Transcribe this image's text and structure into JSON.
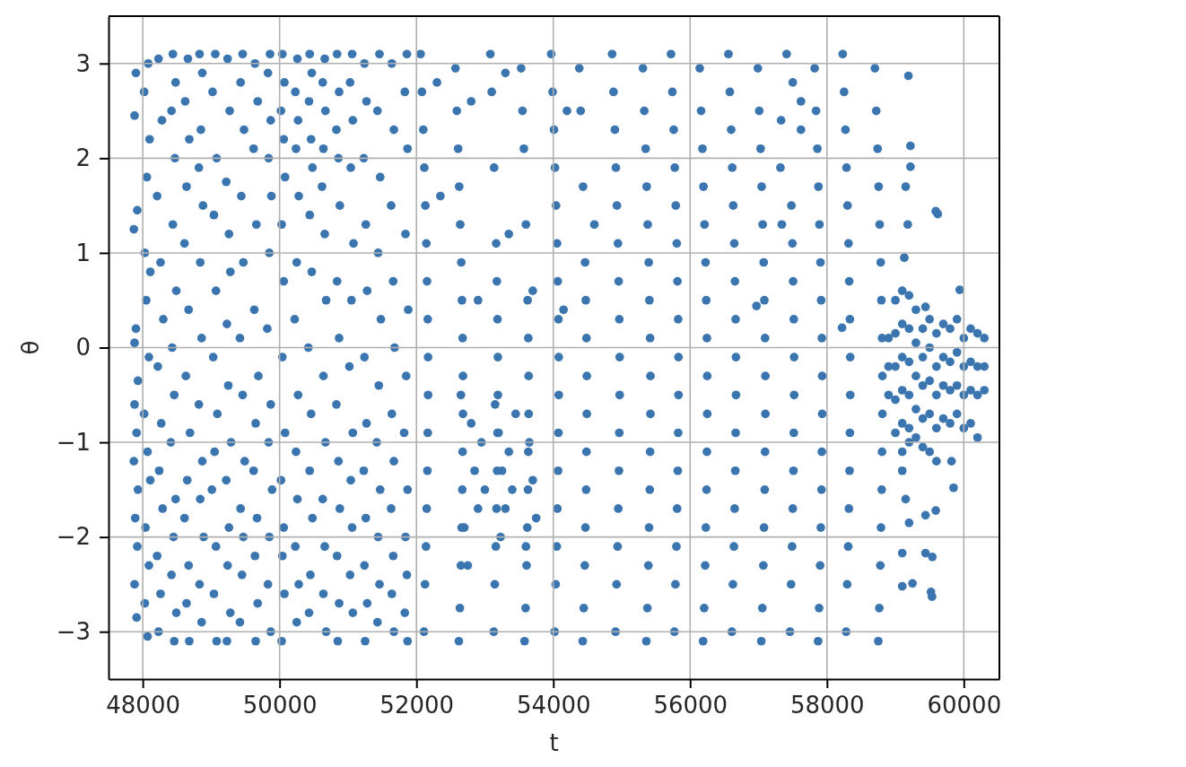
{
  "chart_data": {
    "type": "scatter",
    "xlabel": "t",
    "ylabel": "θ",
    "color": "#3b75af",
    "marker": "circle",
    "grid": true,
    "xlim": [
      47500,
      60520
    ],
    "ylim": [
      -3.5,
      3.5
    ],
    "xticks": [
      48000,
      50000,
      52000,
      54000,
      56000,
      58000,
      60000
    ],
    "yticks": [
      {
        "value": -3,
        "label": "−3"
      },
      {
        "value": -2,
        "label": "−2"
      },
      {
        "value": -1,
        "label": "−1"
      },
      0,
      1,
      2,
      3
    ],
    "x": [
      47900,
      47880,
      47920,
      47870,
      47900,
      47880,
      47930,
      47880,
      47910,
      47870,
      47930,
      47890,
      47920,
      47880,
      47910,
      48080,
      48020,
      48100,
      48060,
      48030,
      48110,
      48050,
      48090,
      48020,
      48070,
      48110,
      48040,
      48090,
      48030,
      48070,
      48230,
      48280,
      48210,
      48260,
      48300,
      48220,
      48270,
      48240,
      48290,
      48210,
      48260,
      48230,
      48440,
      48480,
      48420,
      48470,
      48440,
      48490,
      48430,
      48460,
      48410,
      48480,
      48450,
      48420,
      48490,
      48460,
      48660,
      48620,
      48680,
      48640,
      48610,
      48670,
      48630,
      48690,
      48650,
      48610,
      48670,
      48640,
      48680,
      48830,
      48870,
      48850,
      48820,
      48880,
      48840,
      48860,
      48820,
      48870,
      48840,
      48890,
      48830,
      48860,
      49060,
      49020,
      49080,
      49040,
      49070,
      49030,
      49090,
      49050,
      49010,
      49070,
      49040,
      49080,
      49240,
      49270,
      49220,
      49260,
      49280,
      49230,
      49250,
      49290,
      49220,
      49260,
      49240,
      49280,
      49230,
      49460,
      49430,
      49480,
      49440,
      49470,
      49420,
      49460,
      49490,
      49430,
      49470,
      49450,
      49420,
      49640,
      49680,
      49620,
      49660,
      49630,
      49690,
      49650,
      49620,
      49670,
      49640,
      49680,
      49650,
      49860,
      49830,
      49870,
      49840,
      49880,
      49850,
      49820,
      49870,
      49840,
      49890,
      49850,
      49830,
      49870,
      50040,
      50070,
      50020,
      50060,
      50080,
      50030,
      50060,
      50040,
      50080,
      50020,
      50060,
      50040,
      50070,
      50030,
      50260,
      50230,
      50270,
      50240,
      50280,
      50250,
      50220,
      50270,
      50240,
      50260,
      50230,
      50280,
      50250,
      50440,
      50470,
      50430,
      50460,
      50480,
      50440,
      50470,
      50420,
      50460,
      50440,
      50480,
      50450,
      50430,
      50660,
      50630,
      50670,
      50640,
      50620,
      50660,
      50680,
      50640,
      50670,
      50630,
      50660,
      50640,
      50680,
      50840,
      50870,
      50830,
      50860,
      50880,
      50840,
      50870,
      50830,
      50860,
      50880,
      50840,
      50870,
      50850,
      51060,
      51030,
      51070,
      51040,
      51080,
      51050,
      51020,
      51070,
      51040,
      51060,
      51030,
      51070,
      51240,
      51270,
      51230,
      51260,
      51280,
      51240,
      51270,
      51230,
      51260,
      51240,
      51280,
      51250,
      51460,
      51430,
      51470,
      51440,
      51480,
      51450,
      51420,
      51470,
      51440,
      51460,
      51430,
      51640,
      51670,
      51630,
      51660,
      51680,
      51640,
      51670,
      51630,
      51660,
      51640,
      51670,
      51860,
      51830,
      51870,
      51840,
      51880,
      51850,
      51820,
      51870,
      51840,
      51860,
      51830,
      51870,
      52060,
      52080,
      52100,
      52115,
      52130,
      52145,
      52155,
      52165,
      52170,
      52170,
      52165,
      52160,
      52150,
      52140,
      52125,
      52110,
      52570,
      52590,
      52610,
      52625,
      52640,
      52655,
      52665,
      52675,
      52680,
      52680,
      52675,
      52670,
      52660,
      52650,
      52635,
      52620,
      53080,
      53100,
      53135,
      53165,
      53175,
      53185,
      53190,
      53190,
      53185,
      53180,
      53170,
      53160,
      53145,
      53130,
      53530,
      53550,
      53570,
      53600,
      53625,
      53635,
      53640,
      53640,
      53635,
      53630,
      53620,
      53610,
      53595,
      53580,
      53970,
      53990,
      54010,
      54025,
      54040,
      54055,
      54065,
      54075,
      54080,
      54080,
      54075,
      54070,
      54060,
      54050,
      54035,
      54020,
      54380,
      54400,
      54435,
      54465,
      54475,
      54485,
      54490,
      54490,
      54485,
      54480,
      54470,
      54460,
      54445,
      54430,
      54860,
      54880,
      54900,
      54915,
      54930,
      54945,
      54955,
      54965,
      54970,
      54970,
      54965,
      54960,
      54950,
      54940,
      54925,
      54910,
      55310,
      55330,
      55350,
      55365,
      55380,
      55395,
      55405,
      55415,
      55420,
      55420,
      55415,
      55410,
      55400,
      55390,
      55375,
      55360,
      55720,
      55740,
      55760,
      55775,
      55790,
      55805,
      55815,
      55825,
      55830,
      55830,
      55825,
      55820,
      55810,
      55800,
      55785,
      55770,
      56140,
      56160,
      56180,
      56195,
      56210,
      56225,
      56235,
      56245,
      56250,
      56250,
      56245,
      56240,
      56230,
      56220,
      56205,
      56190,
      56560,
      56580,
      56600,
      56615,
      56630,
      56645,
      56655,
      56665,
      56670,
      56670,
      56665,
      56660,
      56650,
      56640,
      56625,
      56610,
      56990,
      57010,
      57030,
      57045,
      57060,
      57075,
      57085,
      57095,
      57100,
      57100,
      57095,
      57090,
      57080,
      57070,
      57055,
      57040,
      57410,
      57480,
      57495,
      57505,
      57515,
      57520,
      57520,
      57515,
      57510,
      57500,
      57490,
      57475,
      57460,
      57820,
      57840,
      57860,
      57875,
      57890,
      57905,
      57915,
      57925,
      57930,
      57930,
      57925,
      57920,
      57910,
      57900,
      57885,
      57870,
      58230,
      58250,
      58270,
      58285,
      58300,
      58315,
      58325,
      58335,
      58340,
      58340,
      58335,
      58330,
      58320,
      58310,
      58295,
      58280,
      58700,
      58720,
      58740,
      58755,
      58770,
      58785,
      58795,
      58805,
      58810,
      58810,
      58805,
      58800,
      58790,
      58780,
      58765,
      58750,
      52800,
      52850,
      52900,
      52950,
      53000,
      53200,
      53250,
      53300,
      53230,
      53350,
      53400,
      53650,
      53700,
      53750,
      53150,
      53450,
      53600,
      52700,
      52750,
      52650,
      52300,
      52350,
      52800,
      52900,
      53300,
      53350,
      53700,
      54200,
      54150,
      54600,
      57500,
      57620,
      57330,
      57620,
      57320,
      57340,
      59190,
      59220,
      59220,
      59590,
      59620,
      59440,
      59940,
      59820,
      59850,
      59590,
      59440,
      59100,
      59440,
      59540,
      59100,
      59250,
      59520,
      59535,
      58220,
      56970,
      59150,
      59180,
      59130,
      59100,
      59100,
      59150,
      59200,
      58900,
      58900,
      58900,
      59000,
      59000,
      59000,
      59000,
      59000,
      59100,
      59100,
      59100,
      59100,
      59100,
      59200,
      59200,
      59200,
      59200,
      59200,
      59200,
      59300,
      59300,
      59300,
      59300,
      59300,
      59400,
      59400,
      59400,
      59400,
      59400,
      59500,
      59500,
      59500,
      59500,
      59500,
      59600,
      59600,
      59600,
      59600,
      59600,
      59700,
      59700,
      59700,
      59700,
      59800,
      59800,
      59800,
      59800,
      59900,
      59900,
      59900,
      59900,
      60000,
      60000,
      60000,
      60000,
      60100,
      60100,
      60100,
      60100,
      60200,
      60200,
      60200,
      60200,
      60300,
      60300,
      60300
    ],
    "values": [
      2.9,
      2.45,
      1.45,
      1.25,
      0.2,
      0.05,
      -0.35,
      -0.6,
      -0.9,
      -1.2,
      -1.5,
      -1.8,
      -2.1,
      -2.5,
      -2.85,
      3.0,
      2.7,
      2.2,
      1.8,
      1.0,
      0.8,
      0.5,
      -0.1,
      -0.7,
      -1.1,
      -1.4,
      -1.9,
      -2.3,
      -2.7,
      -3.05,
      3.05,
      2.4,
      1.6,
      0.9,
      0.3,
      -0.2,
      -0.8,
      -1.3,
      -1.7,
      -2.2,
      -2.6,
      -3.0,
      3.1,
      2.8,
      2.5,
      2.0,
      1.3,
      0.6,
      0.0,
      -0.5,
      -1.0,
      -1.6,
      -2.0,
      -2.4,
      -2.8,
      -3.1,
      3.05,
      2.6,
      2.2,
      1.7,
      1.1,
      0.4,
      -0.3,
      -0.9,
      -1.4,
      -1.8,
      -2.3,
      -2.7,
      -3.1,
      3.1,
      2.9,
      2.3,
      1.9,
      1.5,
      0.9,
      0.1,
      -0.6,
      -1.2,
      -1.6,
      -2.0,
      -2.5,
      -2.9,
      3.1,
      2.7,
      2.0,
      1.4,
      0.6,
      -0.1,
      -0.7,
      -1.1,
      -1.5,
      -2.1,
      -2.6,
      -3.1,
      3.05,
      2.5,
      1.75,
      1.2,
      0.8,
      0.25,
      -0.4,
      -1.0,
      -1.4,
      -1.9,
      -2.3,
      -2.8,
      -3.1,
      3.1,
      2.8,
      2.3,
      1.6,
      0.9,
      0.1,
      -0.5,
      -1.2,
      -1.7,
      -2.0,
      -2.4,
      -2.9,
      3.0,
      2.6,
      2.1,
      1.3,
      0.4,
      -0.3,
      -0.8,
      -1.3,
      -1.8,
      -2.2,
      -2.7,
      -3.1,
      3.1,
      2.9,
      2.4,
      2.0,
      1.6,
      1.0,
      0.2,
      -0.6,
      -1.0,
      -1.5,
      -2.0,
      -2.5,
      -3.0,
      3.1,
      2.8,
      2.5,
      2.2,
      1.8,
      1.3,
      0.7,
      -0.1,
      -0.9,
      -1.4,
      -1.9,
      -2.2,
      -2.6,
      -3.1,
      3.05,
      2.7,
      2.4,
      2.1,
      1.6,
      0.9,
      0.3,
      -0.5,
      -1.1,
      -1.6,
      -2.1,
      -2.5,
      -2.9,
      3.1,
      2.9,
      2.6,
      2.2,
      1.9,
      1.4,
      0.8,
      0.0,
      -0.7,
      -1.3,
      -1.8,
      -2.4,
      -2.8,
      3.05,
      2.8,
      2.5,
      2.1,
      1.7,
      1.2,
      0.5,
      -0.3,
      -1.0,
      -1.6,
      -2.1,
      -2.6,
      -3.0,
      3.1,
      2.7,
      2.3,
      2.0,
      1.5,
      0.7,
      0.1,
      -0.6,
      -1.2,
      -1.7,
      -2.2,
      -2.7,
      -3.1,
      3.1,
      2.8,
      2.4,
      1.9,
      1.1,
      0.5,
      -0.2,
      -0.9,
      -1.4,
      -1.9,
      -2.4,
      -2.8,
      3.0,
      2.6,
      2.0,
      1.3,
      0.6,
      -0.1,
      -0.8,
      -1.3,
      -1.8,
      -2.3,
      -2.7,
      -3.1,
      3.1,
      2.5,
      1.8,
      1.0,
      0.3,
      -0.4,
      -1.0,
      -1.5,
      -2.0,
      -2.5,
      -2.9,
      3.0,
      2.3,
      1.5,
      0.7,
      0.0,
      -0.7,
      -1.2,
      -1.7,
      -2.2,
      -2.6,
      -3.0,
      3.1,
      2.7,
      2.1,
      1.2,
      0.4,
      -0.3,
      -0.9,
      -1.5,
      -2.0,
      -2.4,
      -2.8,
      -3.1,
      3.1,
      2.7,
      2.3,
      1.9,
      1.5,
      1.1,
      0.7,
      0.3,
      -0.1,
      -0.5,
      -0.9,
      -1.3,
      -1.7,
      -2.1,
      -2.5,
      -3.0,
      2.95,
      2.5,
      2.1,
      1.7,
      1.3,
      0.9,
      0.5,
      0.1,
      -0.3,
      -0.7,
      -1.1,
      -1.5,
      -1.9,
      -2.3,
      -2.75,
      -3.1,
      3.1,
      2.7,
      1.9,
      1.1,
      0.7,
      0.3,
      -0.1,
      -0.5,
      -0.9,
      -1.3,
      -1.7,
      -2.1,
      -2.5,
      -3.0,
      2.95,
      2.5,
      2.1,
      1.3,
      0.5,
      0.1,
      -0.3,
      -0.7,
      -1.1,
      -1.5,
      -1.9,
      -2.3,
      -2.75,
      -3.1,
      3.1,
      2.7,
      2.3,
      1.9,
      1.5,
      1.1,
      0.7,
      0.3,
      -0.1,
      -0.5,
      -0.9,
      -1.3,
      -1.7,
      -2.1,
      -2.5,
      -3.0,
      2.95,
      2.5,
      1.7,
      0.9,
      0.5,
      0.1,
      -0.3,
      -0.7,
      -1.1,
      -1.5,
      -1.9,
      -2.3,
      -2.75,
      -3.1,
      3.1,
      2.7,
      2.3,
      1.9,
      1.5,
      1.1,
      0.7,
      0.3,
      -0.1,
      -0.5,
      -0.9,
      -1.3,
      -1.7,
      -2.1,
      -2.5,
      -3.0,
      2.95,
      2.5,
      2.1,
      1.7,
      1.3,
      0.9,
      0.5,
      0.1,
      -0.3,
      -0.7,
      -1.1,
      -1.5,
      -1.9,
      -2.3,
      -2.75,
      -3.1,
      3.1,
      2.7,
      2.3,
      1.9,
      1.5,
      1.1,
      0.7,
      0.3,
      -0.1,
      -0.5,
      -0.9,
      -1.3,
      -1.7,
      -2.1,
      -2.5,
      -3.0,
      2.95,
      2.5,
      2.1,
      1.7,
      1.3,
      0.9,
      0.5,
      0.1,
      -0.3,
      -0.7,
      -1.1,
      -1.5,
      -1.9,
      -2.3,
      -2.75,
      -3.1,
      3.1,
      2.7,
      2.3,
      1.9,
      1.5,
      1.1,
      0.7,
      0.3,
      -0.1,
      -0.5,
      -0.9,
      -1.3,
      -1.7,
      -2.1,
      -2.5,
      -3.0,
      2.95,
      2.5,
      2.1,
      1.7,
      1.3,
      0.9,
      0.5,
      0.1,
      -0.3,
      -0.7,
      -1.1,
      -1.5,
      -1.9,
      -2.3,
      -2.75,
      -3.1,
      3.1,
      1.5,
      1.1,
      0.7,
      0.3,
      -0.1,
      -0.5,
      -0.9,
      -1.3,
      -1.7,
      -2.1,
      -2.5,
      -3.0,
      2.95,
      2.5,
      2.1,
      1.7,
      1.3,
      0.9,
      0.5,
      0.1,
      -0.3,
      -0.7,
      -1.1,
      -1.5,
      -1.9,
      -2.3,
      -2.75,
      -3.1,
      3.1,
      2.7,
      2.3,
      1.9,
      1.5,
      1.1,
      0.7,
      0.3,
      -0.1,
      -0.5,
      -0.9,
      -1.3,
      -1.7,
      -2.1,
      -2.5,
      -3.0,
      2.95,
      2.5,
      2.1,
      1.7,
      1.3,
      0.9,
      0.5,
      0.1,
      -0.3,
      -0.7,
      -1.1,
      -1.5,
      -1.9,
      -2.3,
      -2.75,
      -3.1,
      -0.8,
      -1.3,
      -1.7,
      -1.0,
      -1.5,
      -0.9,
      -1.3,
      -1.7,
      -2.0,
      -1.1,
      -1.5,
      -1.0,
      -1.4,
      -1.8,
      -0.6,
      -0.7,
      -2.1,
      -1.9,
      -2.3,
      -0.5,
      2.8,
      1.6,
      2.6,
      0.5,
      2.9,
      1.2,
      0.6,
      2.5,
      0.4,
      1.3,
      2.8,
      2.6,
      2.4,
      2.3,
      1.9,
      1.3,
      2.87,
      2.13,
      1.91,
      1.44,
      1.41,
      0.43,
      0.61,
      -1.2,
      -1.48,
      -1.72,
      -1.77,
      -2.17,
      -2.17,
      -2.21,
      -2.52,
      -2.49,
      -2.58,
      -2.63,
      0.21,
      0.44,
      1.7,
      1.3,
      0.95,
      -1.1,
      -1.3,
      -1.6,
      -1.85,
      0.1,
      -0.2,
      -0.5,
      0.5,
      0.15,
      -0.2,
      -0.55,
      -0.9,
      0.6,
      0.25,
      -0.1,
      -0.45,
      -0.8,
      0.55,
      0.2,
      -0.15,
      -0.5,
      -0.85,
      -1.0,
      0.4,
      0.05,
      -0.3,
      -0.65,
      -0.95,
      0.2,
      -0.1,
      -0.4,
      -0.75,
      -1.05,
      0.3,
      0.0,
      -0.35,
      -0.7,
      -1.1,
      0.15,
      -0.2,
      -0.5,
      -0.85,
      -1.2,
      0.25,
      -0.1,
      -0.4,
      -0.75,
      0.2,
      -0.15,
      -0.45,
      -0.8,
      0.3,
      -0.05,
      -0.4,
      -0.7,
      0.1,
      -0.2,
      -0.5,
      -0.85,
      0.2,
      -0.15,
      -0.45,
      -0.8,
      0.15,
      -0.2,
      -0.5,
      -0.95,
      0.1,
      -0.2,
      -0.45
    ]
  }
}
